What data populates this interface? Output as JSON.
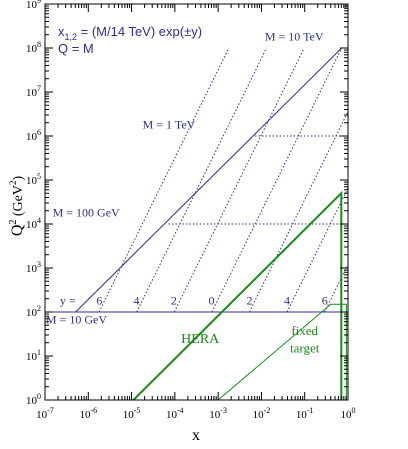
{
  "chart_data": {
    "type": "line",
    "xlabel": "x",
    "ylabel": "Q",
    "ylabel_sup": "2",
    "ylabel_unit_open": "(GeV",
    "ylabel_unit_sup": "2",
    "ylabel_unit_close": ")",
    "x_log": true,
    "y_log": true,
    "xlim": [
      1e-07,
      1
    ],
    "ylim": [
      1,
      1000000000.0
    ],
    "x_ticks": [
      {
        "value": 1e-07,
        "base": "10",
        "exp": "-7"
      },
      {
        "value": 1e-06,
        "base": "10",
        "exp": "-6"
      },
      {
        "value": 1e-05,
        "base": "10",
        "exp": "-5"
      },
      {
        "value": 0.0001,
        "base": "10",
        "exp": "-4"
      },
      {
        "value": 0.001,
        "base": "10",
        "exp": "-3"
      },
      {
        "value": 0.01,
        "base": "10",
        "exp": "-2"
      },
      {
        "value": 0.1,
        "base": "10",
        "exp": "-1"
      },
      {
        "value": 1,
        "base": "10",
        "exp": "0"
      }
    ],
    "y_ticks": [
      {
        "value": 1,
        "base": "10",
        "exp": "0"
      },
      {
        "value": 10,
        "base": "10",
        "exp": "1"
      },
      {
        "value": 100,
        "base": "10",
        "exp": "2"
      },
      {
        "value": 1000,
        "base": "10",
        "exp": "3"
      },
      {
        "value": 10000,
        "base": "10",
        "exp": "4"
      },
      {
        "value": 100000,
        "base": "10",
        "exp": "5"
      },
      {
        "value": 1000000,
        "base": "10",
        "exp": "6"
      },
      {
        "value": 10000000,
        "base": "10",
        "exp": "7"
      },
      {
        "value": 100000000,
        "base": "10",
        "exp": "8"
      },
      {
        "value": 1000000000,
        "base": "10",
        "exp": "9"
      }
    ],
    "formula_line1_base": "x",
    "formula_line1_sub": "1,2",
    "formula_line1_rest": " = (M/14 TeV) exp(±y)",
    "formula_line2": "Q = M",
    "colors": {
      "lhc": "#2f2f8f",
      "hera": "#1a8a1a",
      "axis": "#000000"
    },
    "lhc_region": [
      {
        "x": 5.1e-07,
        "y": 100
      },
      {
        "x": 0.714,
        "y": 100000000.0
      },
      {
        "x": 1,
        "y": 100000000.0
      },
      {
        "x": 1,
        "y": 100
      }
    ],
    "mass_lines": [
      {
        "label": "M = 10 TeV",
        "Q2": 100000000.0,
        "x_from": 0.714,
        "x_to": 1,
        "label_x": 0.012,
        "label_y": 150000000.0
      },
      {
        "label": "M = 1 TeV",
        "Q2": 1000000.0,
        "x_from": 0.0071,
        "x_to": 1,
        "label_x": 1.8e-05,
        "label_y": 1500000.0
      },
      {
        "label": "M = 100 GeV",
        "Q2": 10000.0,
        "x_from": 7.1e-05,
        "x_to": 1,
        "label_x": 1.5e-07,
        "label_y": 15000.0
      },
      {
        "label": "M = 10 GeV",
        "Q2": 100,
        "x_from": 1e-07,
        "x_to": 1,
        "label_x": 1.05e-07,
        "label_y": 55
      }
    ],
    "rapidity_lines": [
      {
        "y": 6,
        "label": "6",
        "x_low": 1.77e-06,
        "label_x": 1.8e-06
      },
      {
        "y": 4,
        "label": "4",
        "x_low": 1.31e-05,
        "label_x": 1.3e-05
      },
      {
        "y": 2,
        "label": "2",
        "x_low": 9.7e-05,
        "label_x": 9.5e-05
      },
      {
        "y": 0,
        "label": "0",
        "x_low": 0.000714,
        "label_x": 0.0007
      },
      {
        "y": -2,
        "label": "2",
        "x_low": 0.00528,
        "label_x": 0.0053
      },
      {
        "y": -4,
        "label": "4",
        "x_low": 0.039,
        "label_x": 0.039
      },
      {
        "y": -6,
        "label": "6",
        "x_low": 0.288,
        "label_x": 0.29
      }
    ],
    "rapidity_prefix": "y =",
    "rapidity_prefix_x": 2.2e-07,
    "rapidity_label_Q2": 150,
    "hera_region": {
      "label": "HERA",
      "label_x": 0.00014,
      "label_y": 20,
      "points": [
        {
          "x": 1.1e-05,
          "y": 1
        },
        {
          "x": 0.7,
          "y": 50000
        },
        {
          "x": 0.7,
          "y": 1
        }
      ]
    },
    "fixed_target_region": {
      "label_line1": "fixed",
      "label_line2": "target",
      "label_x": 0.1,
      "label_y1": 30,
      "label_y2": 12,
      "points": [
        {
          "x": 0.001,
          "y": 1
        },
        {
          "x": 0.4,
          "y": 150
        },
        {
          "x": 0.92,
          "y": 150
        },
        {
          "x": 0.92,
          "y": 1
        }
      ]
    }
  }
}
